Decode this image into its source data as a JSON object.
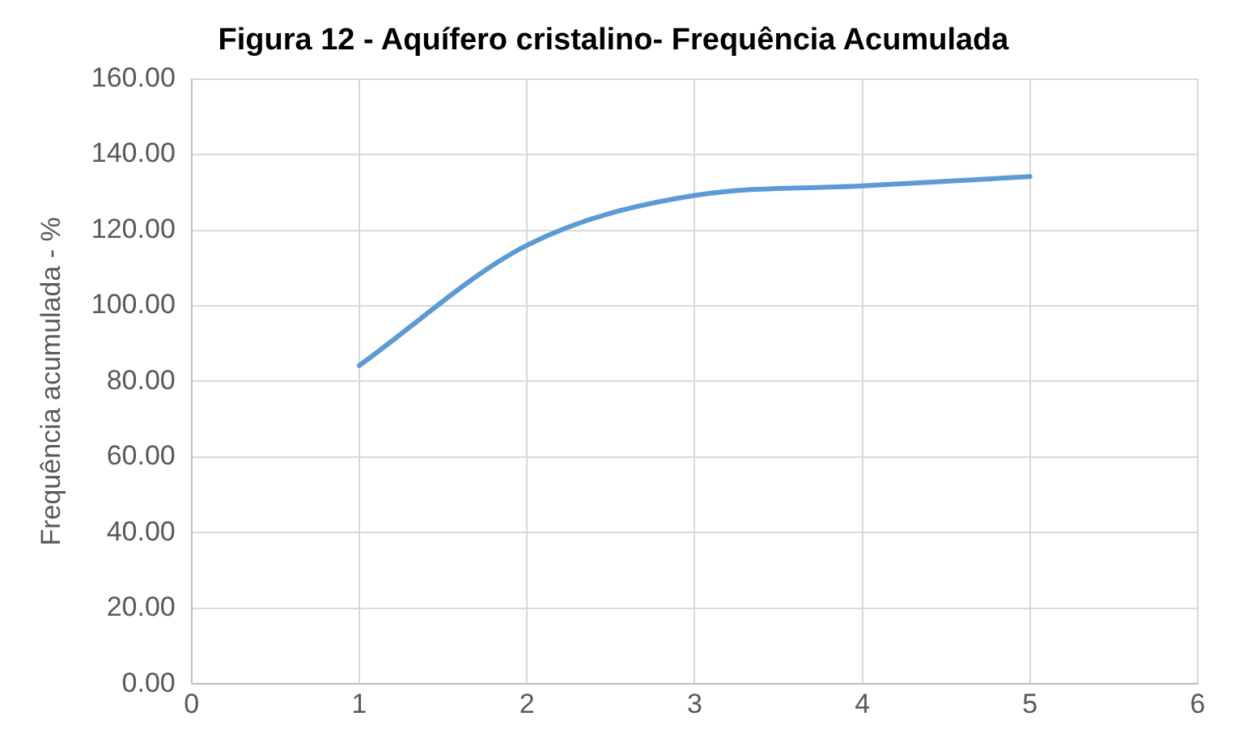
{
  "chart_data": {
    "type": "line",
    "title": "Figura 12 - Aquífero cristalino- Frequência Acumulada",
    "ylabel": "Frequência acumulada - %",
    "x": [
      1,
      2,
      3,
      4,
      5
    ],
    "series": [
      {
        "color": "#5b9bd5",
        "values": [
          84.2,
          116,
          129.2,
          131.7,
          134.2
        ]
      }
    ],
    "xlim": [
      0,
      6
    ],
    "xticks": [
      0,
      1,
      2,
      3,
      4,
      5,
      6
    ],
    "ylim": [
      0,
      160
    ],
    "yticks": [
      {
        "value": 0,
        "label": "0.00"
      },
      {
        "value": 20,
        "label": "20.00"
      },
      {
        "value": 40,
        "label": "40.00"
      },
      {
        "value": 60,
        "label": "60.00"
      },
      {
        "value": 80,
        "label": "80.00"
      },
      {
        "value": 100,
        "label": "100.00"
      },
      {
        "value": 120,
        "label": "120.00"
      },
      {
        "value": 140,
        "label": "140.00"
      },
      {
        "value": 160,
        "label": "160.00"
      }
    ],
    "grid": true,
    "legend": false,
    "marker": "none",
    "line_style": "solid"
  }
}
